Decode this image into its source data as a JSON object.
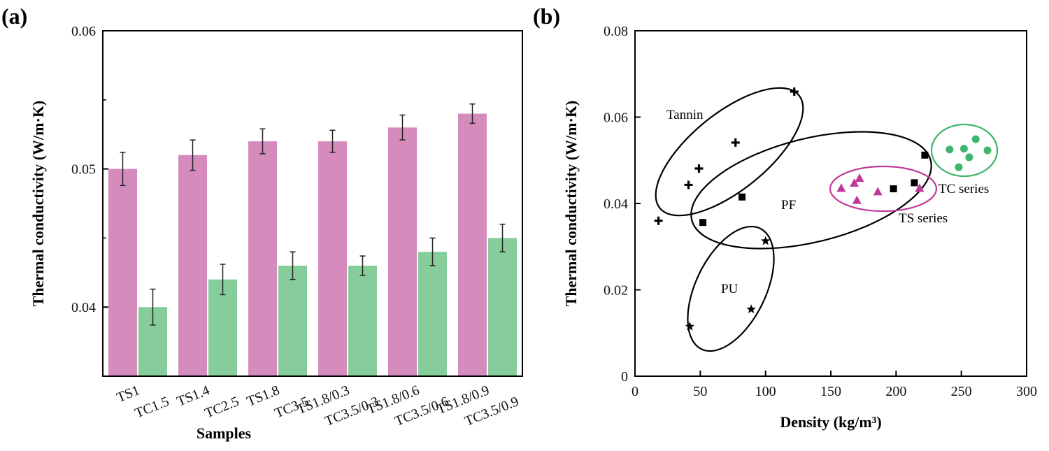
{
  "chart_data": [
    {
      "panel": "(a)",
      "type": "bar",
      "xlabel": "Samples",
      "ylabel": "Thermal conductivity (W/m·K)",
      "ylim": [
        0.035,
        0.06
      ],
      "yticks": [
        "0.04",
        "0.05",
        "0.06"
      ],
      "ytick_values": [
        0.04,
        0.05,
        0.06
      ],
      "categories": [
        [
          "TS1",
          "TC1.5"
        ],
        [
          "TS1.4",
          "TC2.5"
        ],
        [
          "TS1.8",
          "TC3.5"
        ],
        [
          "TS1.8/0.3",
          "TC3.5/0.3"
        ],
        [
          "TS1.8/0.6",
          "TC3.5/0.6"
        ],
        [
          "TS1.8/0.9",
          "TC3.5/0.9"
        ]
      ],
      "series": [
        {
          "name": "TS",
          "color": "#d68bbd",
          "label_color": "#c0399a",
          "values": [
            0.05,
            0.051,
            0.052,
            0.052,
            0.053,
            0.054
          ],
          "errors": [
            0.0012,
            0.0011,
            0.0009,
            0.0008,
            0.0009,
            0.0007
          ]
        },
        {
          "name": "TC",
          "color": "#87cc9b",
          "label_color": "#20a25a",
          "values": [
            0.04,
            0.042,
            0.043,
            0.043,
            0.044,
            0.045
          ],
          "errors": [
            0.0013,
            0.0011,
            0.001,
            0.0007,
            0.001,
            0.001
          ]
        }
      ]
    },
    {
      "panel": "(b)",
      "type": "scatter",
      "xlabel": "Density (kg/m³)",
      "ylabel": "Thermal conductivity (W/m·K)",
      "xlim": [
        0,
        300
      ],
      "ylim": [
        0,
        0.08
      ],
      "xticks": [
        "0",
        "50",
        "100",
        "150",
        "200",
        "250",
        "300"
      ],
      "xtick_values": [
        0,
        50,
        100,
        150,
        200,
        250,
        300
      ],
      "yticks": [
        "0",
        "0.02",
        "0.04",
        "0.06",
        "0.08"
      ],
      "ytick_values": [
        0,
        0.02,
        0.04,
        0.06,
        0.08
      ],
      "series": [
        {
          "name": "Tannin",
          "marker": "plus",
          "color": "#000000",
          "x": [
            18,
            41,
            49,
            77,
            122
          ],
          "y": [
            0.036,
            0.0443,
            0.0481,
            0.0541,
            0.0659
          ]
        },
        {
          "name": "PF",
          "marker": "square",
          "color": "#000000",
          "x": [
            52,
            82,
            198,
            214,
            222
          ],
          "y": [
            0.0356,
            0.0415,
            0.0434,
            0.0448,
            0.0512
          ]
        },
        {
          "name": "PU",
          "marker": "star",
          "color": "#000000",
          "x": [
            42,
            89,
            100
          ],
          "y": [
            0.0115,
            0.0155,
            0.0313
          ]
        },
        {
          "name": "TS series",
          "marker": "triangle",
          "color": "#c0399a",
          "x": [
            158,
            168,
            170,
            172,
            186,
            218
          ],
          "y": [
            0.0435,
            0.0447,
            0.0407,
            0.0458,
            0.0427,
            0.0435
          ]
        },
        {
          "name": "TC series",
          "marker": "circle",
          "color": "#3db56a",
          "x": [
            241,
            248,
            252,
            256,
            261,
            270
          ],
          "y": [
            0.0525,
            0.0484,
            0.0527,
            0.0507,
            0.0549,
            0.0523
          ]
        }
      ],
      "groups": [
        {
          "name": "Tannin",
          "color": "#000000"
        },
        {
          "name": "PF",
          "color": "#000000"
        },
        {
          "name": "PU",
          "color": "#000000"
        },
        {
          "name": "TS series",
          "color": "#c0399a"
        },
        {
          "name": "TC series",
          "color": "#3db56a"
        }
      ]
    }
  ]
}
